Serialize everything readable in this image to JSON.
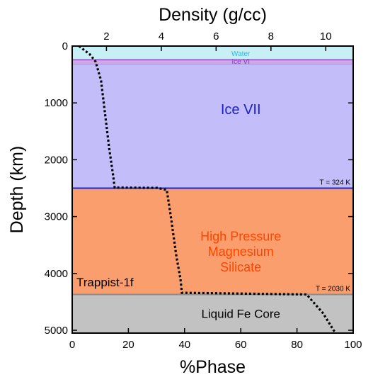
{
  "chart_data": {
    "type": "area",
    "subject": "Trappist-1f",
    "x_bottom": {
      "label": "%Phase",
      "range": [
        0,
        100
      ],
      "ticks": [
        0,
        20,
        40,
        60,
        80,
        100
      ]
    },
    "x_top": {
      "label": "Density (g/cc)",
      "range": [
        0.75,
        11.0
      ],
      "ticks": [
        2,
        4,
        6,
        8,
        10
      ]
    },
    "y": {
      "label": "Depth (km)",
      "range": [
        0,
        5050
      ],
      "inverted": true,
      "ticks": [
        0,
        1000,
        2000,
        3000,
        4000,
        5000
      ]
    },
    "layers": [
      {
        "name": "Water",
        "top": 0,
        "bottom": 240,
        "color": "#c8eef6",
        "label_color": "#35b6d8"
      },
      {
        "name": "Ice VI",
        "top": 240,
        "bottom": 320,
        "color": "#cda9e8",
        "label_color": "#8c3fc4"
      },
      {
        "name": "Ice VII",
        "top": 320,
        "bottom": 2500,
        "color": "#c3bef9",
        "label_color": "#1d20c8"
      },
      {
        "name": "High Pressure Magnesium Silicate",
        "lines": [
          "High Pressure",
          "Magnesium",
          "Silicate"
        ],
        "top": 2500,
        "bottom": 4370,
        "color": "#fb9e6e",
        "label_color": "#ff4500"
      },
      {
        "name": "Liquid Fe Core",
        "top": 4370,
        "bottom": 5050,
        "color": "#c2c2c2",
        "label_color": "#000000"
      }
    ],
    "boundaries": [
      {
        "depth": 240,
        "color": "#b260de"
      },
      {
        "depth": 320,
        "color": "#b8a2e2"
      },
      {
        "depth": 2500,
        "color": "#1a28d4"
      },
      {
        "depth": 4370,
        "color": "#8c8c8c"
      }
    ],
    "annotations": [
      {
        "text": "T = 324 K",
        "depth": 2500
      },
      {
        "text": "T = 2030 K",
        "depth": 4370
      }
    ],
    "density_profile": [
      [
        1.0,
        0
      ],
      [
        1.4,
        150
      ],
      [
        1.6,
        270
      ],
      [
        1.8,
        600
      ],
      [
        1.95,
        1200
      ],
      [
        2.1,
        1800
      ],
      [
        2.25,
        2300
      ],
      [
        2.3,
        2490
      ],
      [
        3.85,
        2495
      ],
      [
        4.2,
        2530
      ],
      [
        4.35,
        3000
      ],
      [
        4.55,
        3700
      ],
      [
        4.7,
        4100
      ],
      [
        4.75,
        4340
      ],
      [
        9.3,
        4370
      ],
      [
        9.9,
        4700
      ],
      [
        10.35,
        5050
      ]
    ],
    "density_profile_style": "black dotted line"
  }
}
